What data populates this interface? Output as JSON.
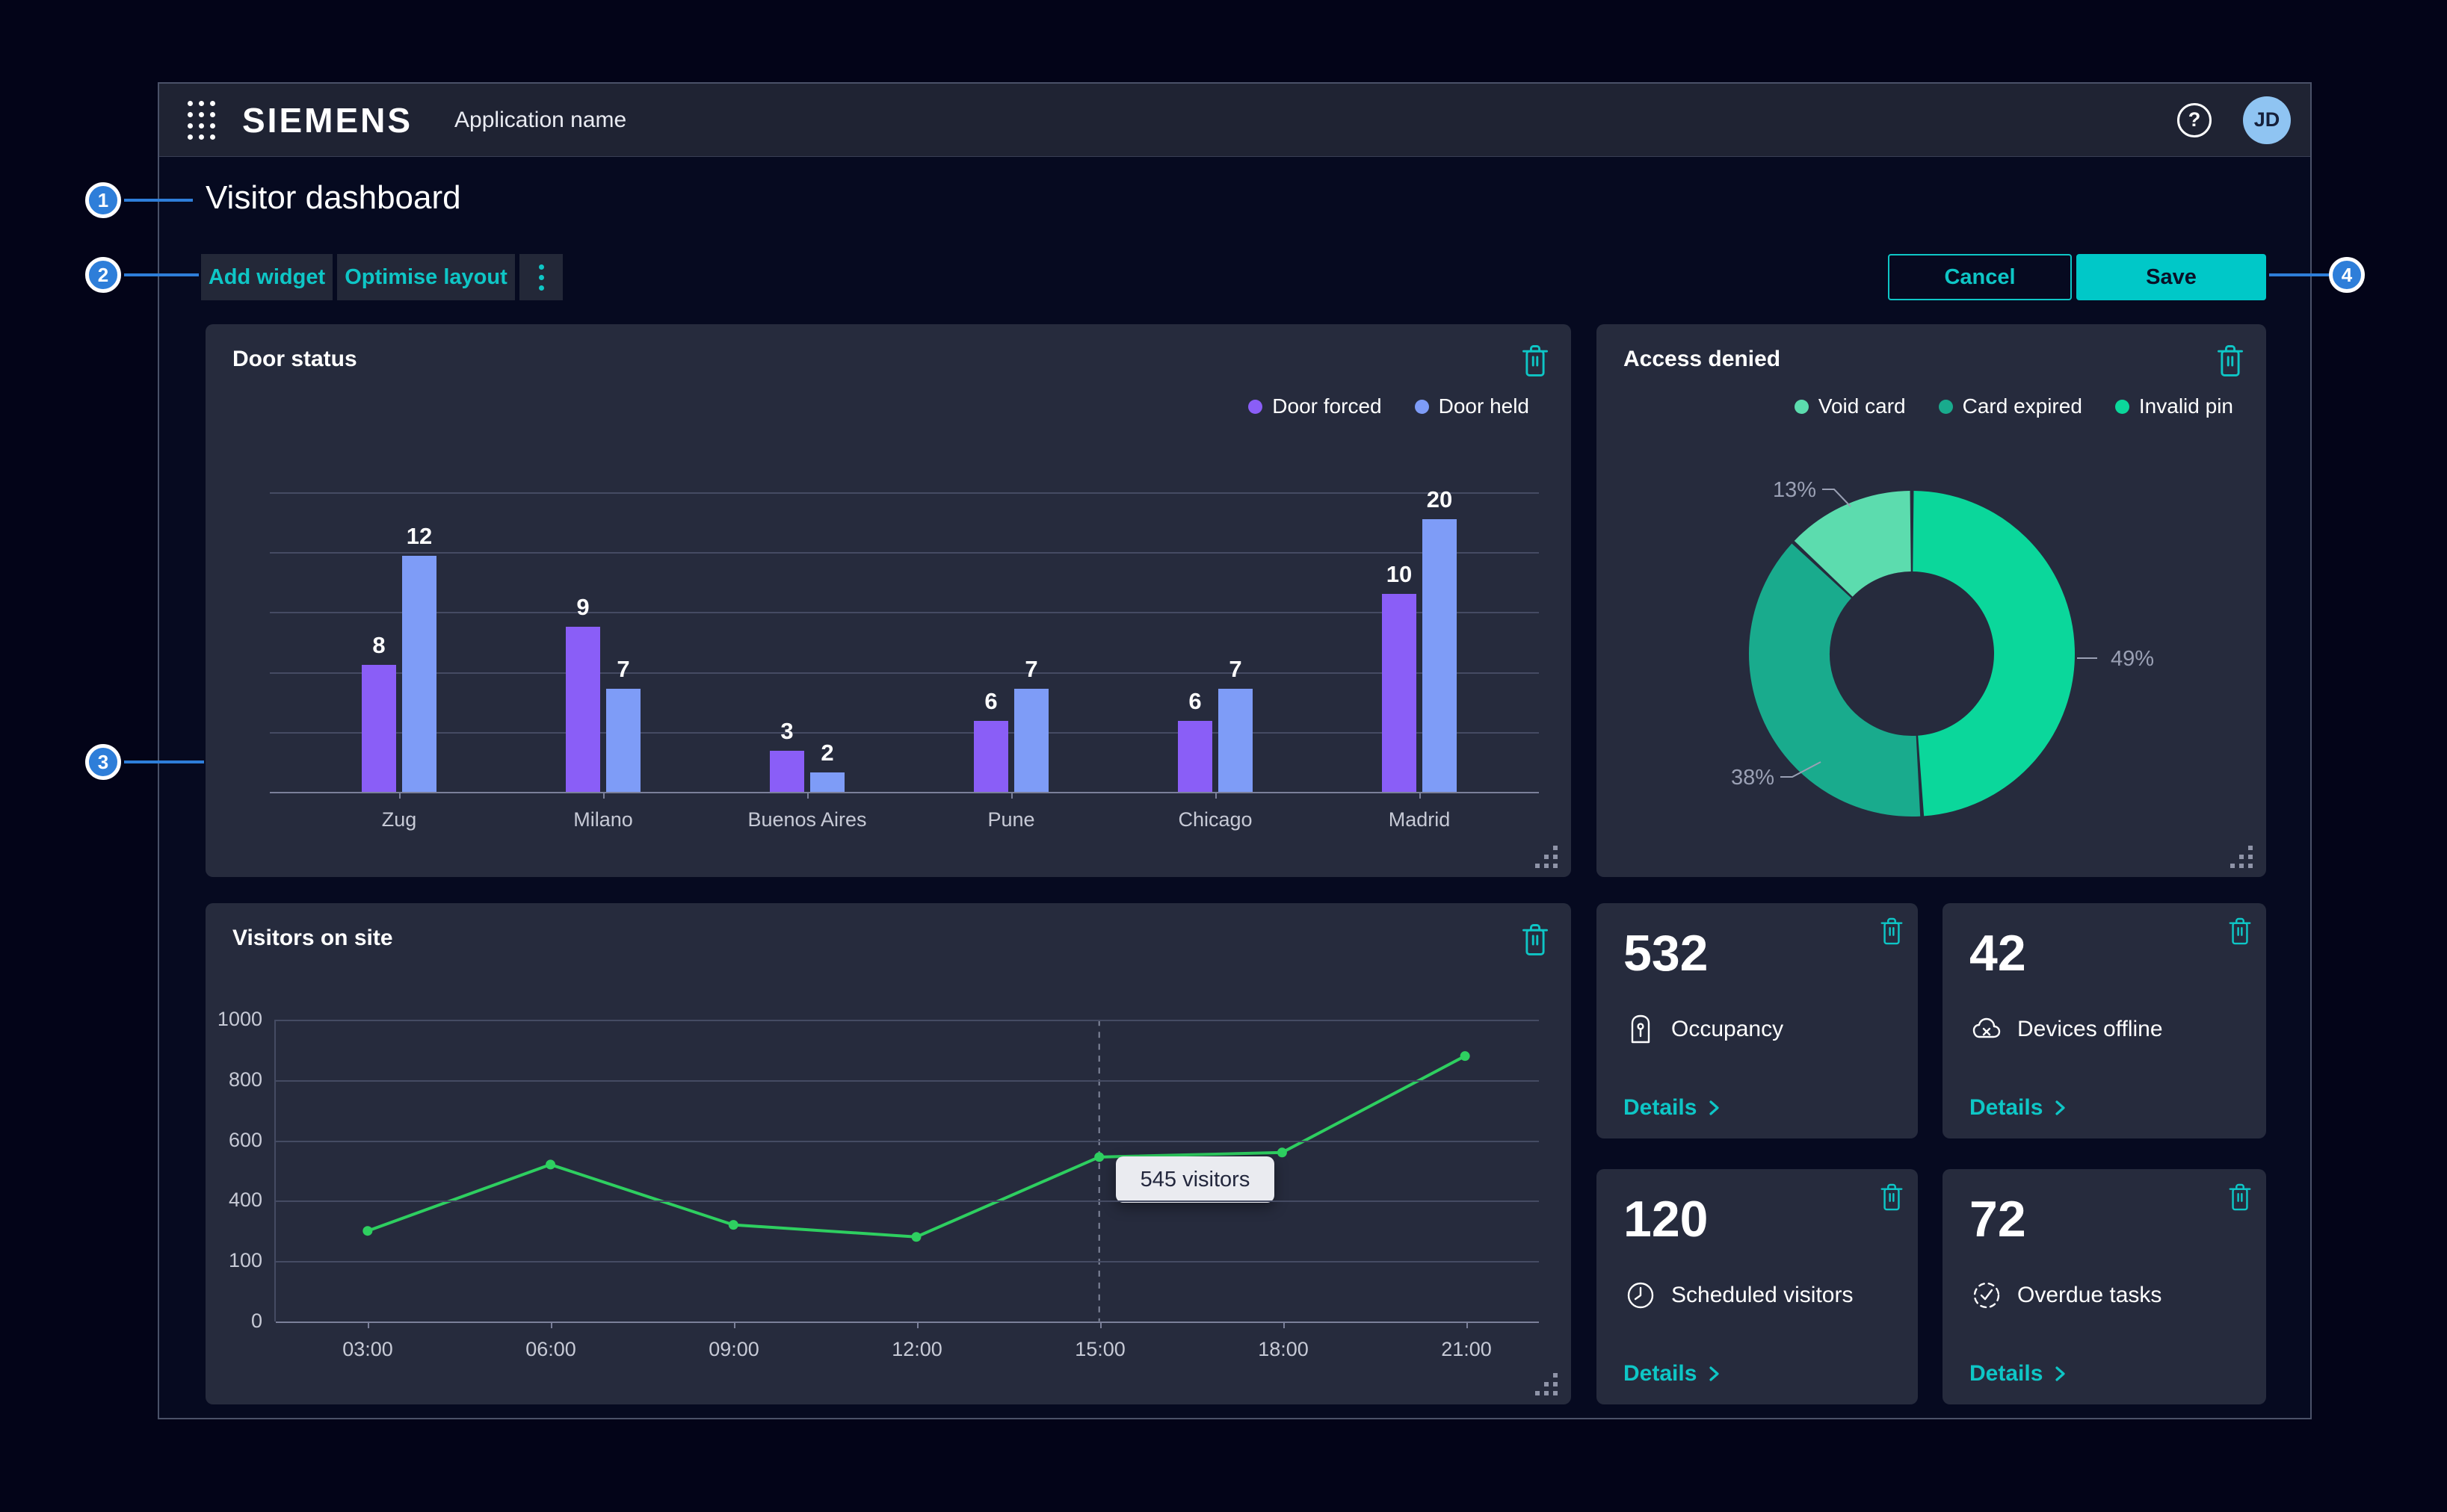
{
  "topbar": {
    "logo": "SIEMENS",
    "app_name": "Application name",
    "help_glyph": "?",
    "avatar_initials": "JD"
  },
  "page": {
    "title": "Visitor dashboard"
  },
  "toolbar": {
    "add_widget": "Add widget",
    "optimise_layout": "Optimise layout",
    "cancel": "Cancel",
    "save": "Save"
  },
  "callouts": [
    "1",
    "2",
    "3",
    "4"
  ],
  "widgets": {
    "door_status": {
      "title": "Door status"
    },
    "access_denied": {
      "title": "Access denied"
    },
    "visitors_on_site": {
      "title": "Visitors on site"
    },
    "stats": [
      {
        "value": "532",
        "label": "Occupancy",
        "icon": "occupancy-icon",
        "details_label": "Details"
      },
      {
        "value": "42",
        "label": "Devices offline",
        "icon": "devices-offline-icon",
        "details_label": "Details"
      },
      {
        "value": "120",
        "label": "Scheduled visitors",
        "icon": "scheduled-visitors-icon",
        "details_label": "Details"
      },
      {
        "value": "72",
        "label": "Overdue tasks",
        "icon": "overdue-tasks-icon",
        "details_label": "Details"
      }
    ]
  },
  "chart_data": [
    {
      "id": "door-status",
      "type": "bar",
      "title": "Door status",
      "categories": [
        "Zug",
        "Milano",
        "Buenos Aires",
        "Pune",
        "Chicago",
        "Madrid"
      ],
      "series": [
        {
          "name": "Door forced",
          "color": "#8a5ef7",
          "values": [
            8,
            9,
            3,
            6,
            6,
            10
          ]
        },
        {
          "name": "Door held",
          "color": "#7e9cf7",
          "values": [
            12,
            7,
            2,
            7,
            7,
            20
          ]
        }
      ],
      "ylim": [
        0,
        22
      ],
      "grid": true,
      "legend_position": "top-right",
      "data_labels": true
    },
    {
      "id": "access-denied",
      "type": "pie",
      "donut": true,
      "title": "Access denied",
      "slices": [
        {
          "name": "Invalid pin",
          "value": 49,
          "label": "49%",
          "color": "#0bd79b"
        },
        {
          "name": "Card expired",
          "value": 38,
          "label": "38%",
          "color": "#19ab8d"
        },
        {
          "name": "Void card",
          "value": 13,
          "label": "13%",
          "color": "#5cdcae"
        }
      ],
      "legend_order": [
        "Void card",
        "Card expired",
        "Invalid pin"
      ],
      "start_angle_deg": 0,
      "clockwise": true
    },
    {
      "id": "visitors-on-site",
      "type": "line",
      "title": "Visitors on site",
      "x": [
        "03:00",
        "06:00",
        "09:00",
        "12:00",
        "15:00",
        "18:00",
        "21:00"
      ],
      "values": [
        300,
        520,
        320,
        280,
        545,
        560,
        880
      ],
      "y_ticks": [
        "1000",
        "800",
        "600",
        "400",
        "100",
        "0"
      ],
      "ylim": [
        0,
        1000
      ],
      "color": "#2ecf60",
      "grid": true,
      "highlight": {
        "x": "15:00",
        "x_index": 4,
        "tooltip": "545 visitors"
      }
    }
  ],
  "colors": {
    "accent": "#0ec6c6",
    "save_fill": "#00c8c8",
    "save_text": "#0a1026",
    "callout": "#2e7ed9",
    "avatar_bg": "#8fc4f2",
    "avatar_text": "#16203a",
    "card_bg": "#262b3d",
    "panel_bg": "#060a20",
    "page_bg": "#030418",
    "topbar_bg": "#1f2333",
    "tooltip_bg": "#eaebf0",
    "tooltip_text": "#23273d",
    "bar_purple": "#8a5ef7",
    "bar_blue": "#7e9cf7",
    "line_green": "#2ecf60",
    "pie_bright": "#0bd79b",
    "pie_mid": "#19ab8d",
    "pie_light": "#5cdcae"
  }
}
